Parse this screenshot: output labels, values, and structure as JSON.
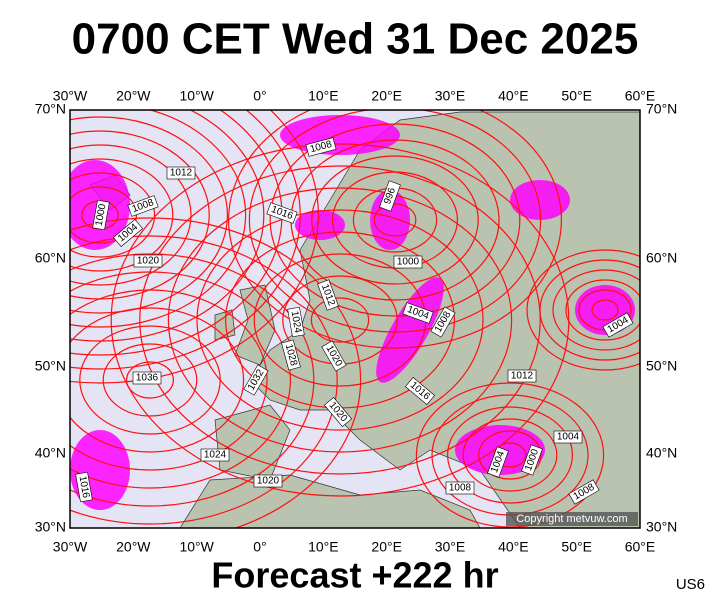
{
  "header": {
    "title": "0700 CET Wed 31 Dec 2025"
  },
  "map": {
    "lon_labels": [
      "30°W",
      "20°W",
      "10°W",
      "0°",
      "10°E",
      "20°E",
      "30°E",
      "40°E",
      "50°E",
      "60°E"
    ],
    "lat_labels": [
      "70°N",
      "60°N",
      "50°N",
      "40°N",
      "30°N"
    ],
    "isobar_labels": [
      1012,
      1008,
      1000,
      1004,
      1020,
      1016,
      1008,
      996,
      1000,
      1012,
      1024,
      1028,
      1020,
      1032,
      1036,
      1004,
      1008,
      1016,
      1020,
      1024,
      1020,
      1016,
      1012,
      1004,
      1004,
      1000,
      1008,
      1008,
      1004
    ]
  },
  "footer": {
    "forecast": "Forecast +222 hr",
    "model": "US6",
    "copyright": "Copyright metvuw.com"
  }
}
